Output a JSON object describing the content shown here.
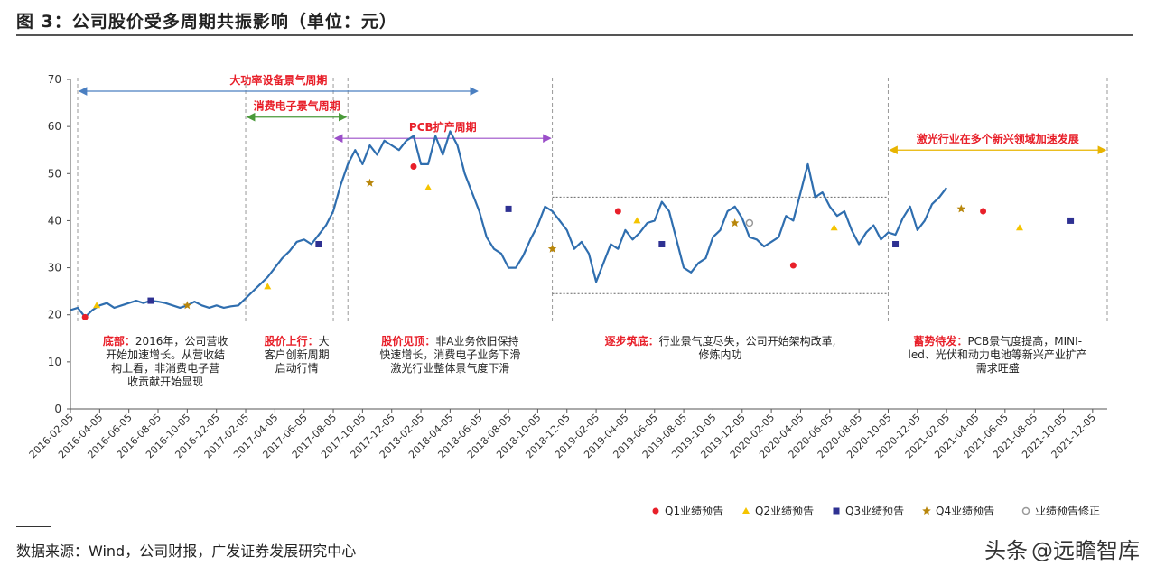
{
  "figure": {
    "title": "图 3：公司股价受多周期共振影响（单位：元）",
    "source": "数据来源：Wind，公司财报，广发证券发展研究中心",
    "watermark_prefix": "头条",
    "watermark_name": "@远瞻智库"
  },
  "colors": {
    "line": "#2F6EAF",
    "red": "#E8202A",
    "blue_arrow": "#4A7FC1",
    "green_arrow": "#4A9A3A",
    "purple_arrow": "#9B4FC9",
    "gold_arrow": "#E8B400",
    "q1": "#E8202A",
    "q2": "#F5C400",
    "q3": "#2E3192",
    "q4": "#B8860B",
    "fix": "#999999"
  },
  "chart_data": {
    "type": "line",
    "ylim": [
      0,
      70
    ],
    "yticks": [
      0,
      10,
      20,
      30,
      40,
      50,
      60,
      70
    ],
    "x_tick_labels": [
      "2016-02-05",
      "2016-04-05",
      "2016-06-05",
      "2016-08-05",
      "2016-10-05",
      "2016-12-05",
      "2017-02-05",
      "2017-04-05",
      "2017-06-05",
      "2017-08-05",
      "2017-10-05",
      "2017-12-05",
      "2018-02-05",
      "2018-04-05",
      "2018-06-05",
      "2018-08-05",
      "2018-10-05",
      "2018-12-05",
      "2019-02-05",
      "2019-04-05",
      "2019-06-05",
      "2019-08-05",
      "2019-10-05",
      "2019-12-05",
      "2020-02-05",
      "2020-04-05",
      "2020-06-05",
      "2020-08-05",
      "2020-10-05",
      "2020-12-05",
      "2021-02-05",
      "2021-04-05",
      "2021-06-05",
      "2021-08-05",
      "2021-10-05",
      "2021-12-05"
    ],
    "series": [
      {
        "name": "",
        "x_month_index": [
          0,
          0.5,
          1,
          1.5,
          2,
          2.5,
          3,
          3.5,
          4,
          4.5,
          5,
          5.5,
          6,
          6.5,
          7,
          7.5,
          8,
          8.5,
          9,
          9.5,
          10,
          10.5,
          11,
          11.5,
          12,
          12.5,
          13,
          13.5,
          14,
          14.5,
          15,
          15.5,
          16,
          16.5,
          17,
          17.5,
          18,
          18.5,
          19,
          19.5,
          20,
          20.5,
          21,
          21.5,
          22,
          22.5,
          23,
          23.5,
          24,
          24.5,
          25,
          25.5,
          26,
          26.5,
          27,
          27.5,
          28,
          28.5,
          29,
          29.5,
          30,
          30.5,
          31,
          31.5,
          32,
          32.5,
          33,
          33.5,
          34,
          34.5,
          35,
          35.5,
          36,
          36.5,
          37,
          37.5,
          38,
          38.5,
          39,
          39.5,
          40,
          40.5,
          41,
          41.5,
          42,
          42.5,
          43,
          43.5,
          44,
          44.5,
          45,
          45.5,
          46,
          46.5,
          47,
          47.5,
          48,
          48.5,
          49,
          49.5,
          50,
          50.5,
          51,
          51.5,
          52,
          52.5,
          53,
          53.5,
          54,
          54.5,
          55,
          55.5,
          56,
          56.5,
          57,
          57.5,
          58,
          58.5,
          59,
          59.5,
          60,
          60.5,
          61,
          61.5,
          62,
          62.5,
          63,
          63.5,
          64,
          64.5,
          65,
          65.5,
          66,
          66.5,
          67,
          67.5,
          68,
          68.5,
          69,
          69.5,
          70,
          70.5,
          71
        ],
        "values": [
          21,
          21.5,
          19.5,
          21,
          22,
          22.5,
          21.5,
          22,
          22.5,
          23,
          22.5,
          23,
          22.8,
          22.5,
          22,
          21.5,
          22,
          22.8,
          22,
          21.5,
          22,
          21.5,
          21.8,
          22,
          23.5,
          25,
          26.5,
          28,
          30,
          32,
          33.5,
          35.5,
          36,
          35,
          37,
          39,
          42,
          47.5,
          52,
          55,
          52,
          56,
          54,
          57,
          56,
          55,
          57,
          58,
          52,
          52,
          58,
          54,
          59,
          56,
          50,
          46,
          42,
          36.5,
          34,
          33,
          30,
          30,
          32.5,
          36,
          39,
          43,
          42,
          40,
          38,
          34,
          35.5,
          33,
          27,
          31,
          35,
          34,
          38,
          36,
          37.5,
          39.5,
          40,
          44,
          42,
          36,
          30,
          29,
          31,
          32,
          36.5,
          38,
          42,
          43,
          40.5,
          36.5,
          36,
          34.5,
          35.5,
          36.5,
          41,
          40,
          46,
          52,
          45,
          46,
          43,
          41,
          42,
          38,
          35,
          37.5,
          39,
          36,
          37.5,
          37,
          40.5,
          43,
          38,
          40,
          43.5,
          45,
          47
        ]
      }
    ],
    "periods": [
      {
        "label": "大功率设备景气周期",
        "start_month": 0,
        "end_month": 28,
        "y": 67.5,
        "color_key": "blue_arrow"
      },
      {
        "label": "消费电子景气周期",
        "start_month": 12,
        "end_month": 19,
        "y": 62,
        "color_key": "green_arrow"
      },
      {
        "label": "PCB扩产周期",
        "start_month": 18,
        "end_month": 33,
        "y": 57.5,
        "color_key": "purple_arrow"
      },
      {
        "label": "激光行业在多个新兴领域加速发展",
        "start_month": 56,
        "end_month": 71,
        "y": 55,
        "color_key": "gold_arrow"
      }
    ],
    "phase_dividers": [
      0,
      12,
      18,
      19,
      33,
      56,
      71
    ],
    "range_box": {
      "start_month": 33,
      "end_month": 56,
      "top": 45,
      "bottom": 24.5
    },
    "phase_notes": [
      {
        "title": "底部：",
        "lines": [
          "2016年，公司营收",
          "开始加速增长。从营收结",
          "构上看，非消费电子营",
          "收贡献开始显现"
        ],
        "center_month": 6.5
      },
      {
        "title": "股价上行：",
        "lines": [
          "大",
          "客户创新周期",
          "启动行情"
        ],
        "center_month": 15.5
      },
      {
        "title": "股价见顶：",
        "lines": [
          "非A业务依旧保持",
          "快速增长，消费电子业务下滑",
          "激光行业整体景气度下滑"
        ],
        "center_month": 26
      },
      {
        "title": "逐步筑底：",
        "lines": [
          "行业景气度尽失，公司开始架构改革,",
          "修炼内功"
        ],
        "center_month": 44.5
      },
      {
        "title": "蓄势待发：",
        "lines": [
          "PCB景气度提高，MINI-",
          "led、光伏和动力电池等新兴产业扩产",
          "需求旺盛"
        ],
        "center_month": 63.5
      }
    ],
    "markers": [
      {
        "type": "q1",
        "month": 1,
        "value": 19.5
      },
      {
        "type": "q1",
        "month": 23.5,
        "value": 51.5
      },
      {
        "type": "q1",
        "month": 37.5,
        "value": 42
      },
      {
        "type": "q1",
        "month": 49.5,
        "value": 30.5
      },
      {
        "type": "q1",
        "month": 62.5,
        "value": 42
      },
      {
        "type": "q2",
        "month": 1.8,
        "value": 22
      },
      {
        "type": "q2",
        "month": 13.5,
        "value": 26
      },
      {
        "type": "q2",
        "month": 24.5,
        "value": 47
      },
      {
        "type": "q2",
        "month": 38.8,
        "value": 40
      },
      {
        "type": "q2",
        "month": 52.3,
        "value": 38.5
      },
      {
        "type": "q2",
        "month": 65,
        "value": 38.5
      },
      {
        "type": "q3",
        "month": 5.5,
        "value": 23
      },
      {
        "type": "q3",
        "month": 17,
        "value": 35
      },
      {
        "type": "q3",
        "month": 30,
        "value": 42.5
      },
      {
        "type": "q3",
        "month": 40.5,
        "value": 35
      },
      {
        "type": "q3",
        "month": 56.5,
        "value": 35
      },
      {
        "type": "q3",
        "month": 68.5,
        "value": 40
      },
      {
        "type": "q4",
        "month": 8,
        "value": 22
      },
      {
        "type": "q4",
        "month": 20.5,
        "value": 48
      },
      {
        "type": "q4",
        "month": 33,
        "value": 34
      },
      {
        "type": "q4",
        "month": 45.5,
        "value": 39.5
      },
      {
        "type": "q4",
        "month": 61,
        "value": 42.5
      },
      {
        "type": "fix",
        "month": 46.5,
        "value": 39.5
      }
    ],
    "legend": [
      {
        "type": "q1",
        "label": "Q1业绩预告"
      },
      {
        "type": "q2",
        "label": "Q2业绩预告"
      },
      {
        "type": "q3",
        "label": "Q3业绩预告"
      },
      {
        "type": "q4",
        "label": "Q4业绩预告"
      },
      {
        "type": "fix",
        "label": "业绩预告修正"
      }
    ]
  }
}
